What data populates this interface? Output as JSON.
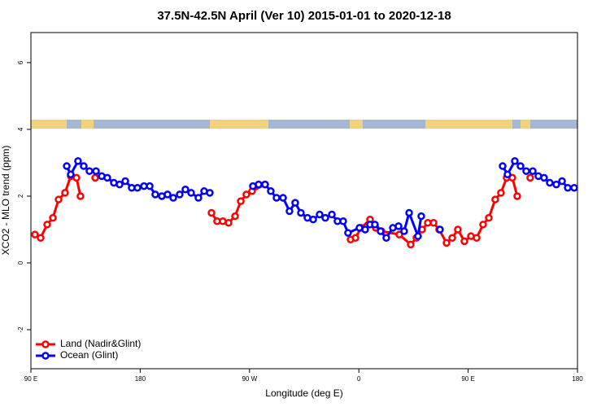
{
  "chart_data": {
    "type": "line",
    "title": "37.5N-42.5N April (Ver 10)   2015-01-01 to 2020-12-18",
    "xlabel": "Longitude (deg E)",
    "ylabel": "XCO2 - MLO trend (ppm)",
    "xlim": [
      90,
      540
    ],
    "ylim": [
      -3.17,
      6.9
    ],
    "xticks": [
      {
        "value": 90,
        "label": "90 E"
      },
      180,
      {
        "value": 270,
        "label": "90 W"
      },
      {
        "value": 360,
        "label": "0"
      },
      {
        "value": 450,
        "label": "90 E"
      },
      {
        "value": 540,
        "label": "180"
      }
    ],
    "yticks": [
      -2,
      0,
      2,
      4,
      6
    ],
    "legend": "bottom-left",
    "series": [
      {
        "name": "Land (Nadir&Glint)",
        "color": "#ff0000",
        "x": [
          93.3,
          98.0,
          103.4,
          108.1,
          112.8,
          118.1,
          122.8,
          127.5,
          130.8,
          null,
          142.9,
          null,
          238.7,
          243.3,
          248.0,
          252.7,
          258.1,
          262.8,
          267.4,
          272.1,
          282.8,
          null,
          353.2,
          357.2,
          361.9,
          369.2,
          373.9,
          378.6,
          393.3,
          402.7,
          407.4,
          412.1,
          416.8,
          421.5,
          426.1,
          432.2,
          436.9,
          441.5,
          446.9,
          452.3,
          457.0,
          462.3,
          467.0,
          472.3,
          477.0,
          481.7,
          486.4,
          490.4,
          null,
          501.1
        ],
        "values": [
          0.85,
          0.75,
          1.15,
          1.35,
          1.9,
          2.1,
          2.6,
          2.55,
          2.0,
          null,
          2.55,
          null,
          1.5,
          1.25,
          1.25,
          1.2,
          1.4,
          1.85,
          2.05,
          2.15,
          2.35,
          null,
          0.7,
          0.75,
          1.05,
          1.3,
          1.05,
          0.95,
          0.85,
          0.55,
          0.75,
          1.0,
          1.2,
          1.2,
          1.0,
          0.6,
          0.75,
          1.0,
          0.65,
          0.8,
          0.75,
          1.15,
          1.35,
          1.9,
          2.1,
          2.55,
          2.55,
          2.0,
          null,
          2.55
        ]
      },
      {
        "name": "Ocean (Glint)",
        "color": "#0000ff",
        "x": [
          119.5,
          122.8,
          128.8,
          133.5,
          138.2,
          143.6,
          148.3,
          152.9,
          158.3,
          163.0,
          167.7,
          173.0,
          177.7,
          183.1,
          187.8,
          192.4,
          197.8,
          202.5,
          207.2,
          212.5,
          217.2,
          221.9,
          227.9,
          232.6,
          237.3,
          null,
          272.8,
          277.5,
          282.8,
          287.5,
          292.2,
          297.6,
          302.9,
          307.6,
          312.3,
          317.7,
          322.4,
          327.7,
          332.4,
          337.8,
          342.4,
          347.1,
          351.1,
          360.5,
          365.2,
          369.2,
          373.2,
          377.9,
          382.6,
          388.0,
          392.7,
          397.3,
          401.4,
          408.7,
          411.4,
          null,
          426.8,
          null,
          478.4,
          482.4,
          488.4,
          493.1,
          497.8,
          503.2,
          507.8,
          512.5,
          517.2,
          522.6,
          527.3,
          532.0,
          537.3
        ],
        "values": [
          2.9,
          2.65,
          3.05,
          2.9,
          2.75,
          2.75,
          2.6,
          2.55,
          2.4,
          2.35,
          2.45,
          2.25,
          2.25,
          2.3,
          2.3,
          2.05,
          2.0,
          2.05,
          1.95,
          2.05,
          2.2,
          2.1,
          1.95,
          2.15,
          2.1,
          null,
          2.3,
          2.35,
          2.35,
          2.15,
          1.95,
          1.95,
          1.55,
          1.8,
          1.5,
          1.35,
          1.3,
          1.45,
          1.35,
          1.45,
          1.25,
          1.25,
          0.9,
          1.05,
          1.0,
          1.15,
          1.15,
          0.95,
          0.75,
          1.05,
          1.1,
          0.95,
          1.5,
          0.8,
          1.4,
          null,
          1.0,
          null,
          2.9,
          2.65,
          3.05,
          2.9,
          2.75,
          2.75,
          2.6,
          2.55,
          2.4,
          2.35,
          2.45,
          2.25,
          2.25
        ]
      }
    ]
  }
}
